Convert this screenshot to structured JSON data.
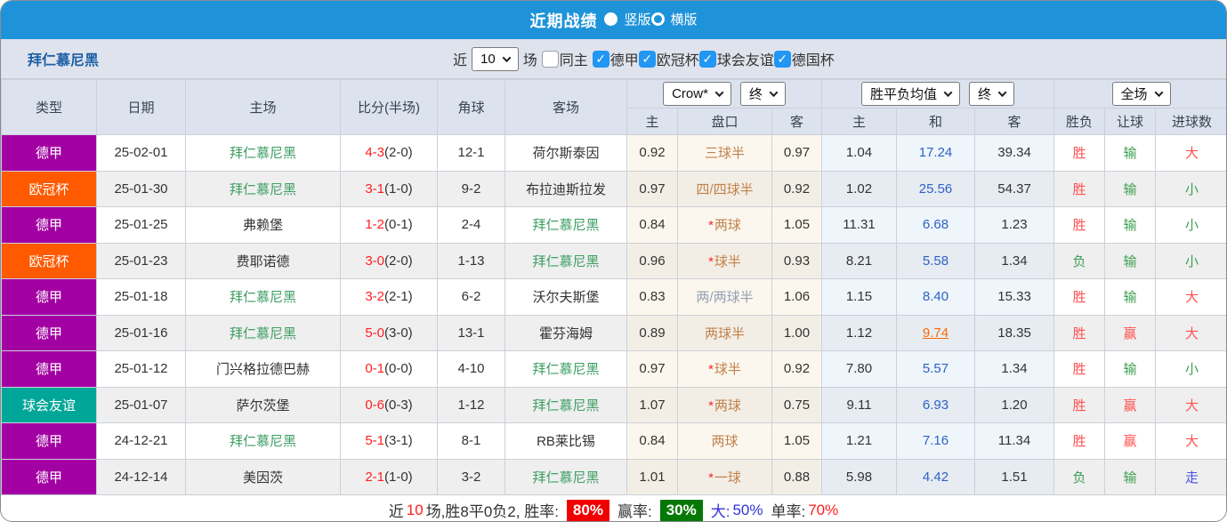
{
  "titlebar": {
    "title": "近期战绩",
    "radios": [
      {
        "label": "竖版",
        "selected": true
      },
      {
        "label": "横版",
        "selected": false
      }
    ]
  },
  "filterbar": {
    "team": "拜仁慕尼黑",
    "near_label": "近",
    "count_value": "10",
    "games_label": "场",
    "same_home": {
      "label": "同主",
      "checked": false
    },
    "leagues": [
      {
        "label": "德甲",
        "checked": true
      },
      {
        "label": "欧冠杯",
        "checked": true
      },
      {
        "label": "球会友谊",
        "checked": true
      },
      {
        "label": "德国杯",
        "checked": true
      }
    ]
  },
  "table": {
    "main_headers": [
      "类型",
      "日期",
      "主场",
      "比分(半场)",
      "角球",
      "客场"
    ],
    "sub_headers": [
      "主",
      "盘口",
      "客",
      "主",
      "和",
      "客",
      "胜负",
      "让球",
      "进球数"
    ],
    "selects": {
      "odds_company": "Crow*",
      "odds_time": "终",
      "wdl_source": "胜平负均值",
      "wdl_time": "终",
      "scope": "全场"
    },
    "rows": [
      {
        "league": "德甲",
        "date": "25-02-01",
        "home": {
          "name": "拜仁慕尼黑",
          "hl": true
        },
        "score": "4-3",
        "half": "(2-0)",
        "corners": "12-1",
        "away": {
          "name": "荷尔斯泰因",
          "hl": false
        },
        "ah": {
          "home": "0.92",
          "star": false,
          "line": "三球半",
          "muted": false,
          "away": "0.97"
        },
        "eu": {
          "win": "1.04",
          "draw": "17.24",
          "draw_hl": false,
          "lose": "39.34"
        },
        "res": {
          "wl": "胜",
          "wl_c": "r",
          "ah": "输",
          "ah_c": "g",
          "ou": "大",
          "ou_c": "r"
        }
      },
      {
        "league": "欧冠杯",
        "date": "25-01-30",
        "home": {
          "name": "拜仁慕尼黑",
          "hl": true
        },
        "score": "3-1",
        "half": "(1-0)",
        "corners": "9-2",
        "away": {
          "name": "布拉迪斯拉发",
          "hl": false
        },
        "ah": {
          "home": "0.97",
          "star": false,
          "line": "四/四球半",
          "muted": false,
          "away": "0.92"
        },
        "eu": {
          "win": "1.02",
          "draw": "25.56",
          "draw_hl": false,
          "lose": "54.37"
        },
        "res": {
          "wl": "胜",
          "wl_c": "r",
          "ah": "输",
          "ah_c": "g",
          "ou": "小",
          "ou_c": "g"
        }
      },
      {
        "league": "德甲",
        "date": "25-01-25",
        "home": {
          "name": "弗赖堡",
          "hl": false
        },
        "score": "1-2",
        "half": "(0-1)",
        "corners": "2-4",
        "away": {
          "name": "拜仁慕尼黑",
          "hl": true
        },
        "ah": {
          "home": "0.84",
          "star": true,
          "line": "两球",
          "muted": false,
          "away": "1.05"
        },
        "eu": {
          "win": "11.31",
          "draw": "6.68",
          "draw_hl": false,
          "lose": "1.23"
        },
        "res": {
          "wl": "胜",
          "wl_c": "r",
          "ah": "输",
          "ah_c": "g",
          "ou": "小",
          "ou_c": "g"
        }
      },
      {
        "league": "欧冠杯",
        "date": "25-01-23",
        "home": {
          "name": "费耶诺德",
          "hl": false
        },
        "score": "3-0",
        "half": "(2-0)",
        "corners": "1-13",
        "away": {
          "name": "拜仁慕尼黑",
          "hl": true
        },
        "ah": {
          "home": "0.96",
          "star": true,
          "line": "球半",
          "muted": false,
          "away": "0.93"
        },
        "eu": {
          "win": "8.21",
          "draw": "5.58",
          "draw_hl": false,
          "lose": "1.34"
        },
        "res": {
          "wl": "负",
          "wl_c": "g",
          "ah": "输",
          "ah_c": "g",
          "ou": "小",
          "ou_c": "g"
        }
      },
      {
        "league": "德甲",
        "date": "25-01-18",
        "home": {
          "name": "拜仁慕尼黑",
          "hl": true
        },
        "score": "3-2",
        "half": "(2-1)",
        "corners": "6-2",
        "away": {
          "name": "沃尔夫斯堡",
          "hl": false
        },
        "ah": {
          "home": "0.83",
          "star": false,
          "line": "两/两球半",
          "muted": true,
          "away": "1.06"
        },
        "eu": {
          "win": "1.15",
          "draw": "8.40",
          "draw_hl": false,
          "lose": "15.33"
        },
        "res": {
          "wl": "胜",
          "wl_c": "r",
          "ah": "输",
          "ah_c": "g",
          "ou": "大",
          "ou_c": "r"
        }
      },
      {
        "league": "德甲",
        "date": "25-01-16",
        "home": {
          "name": "拜仁慕尼黑",
          "hl": true
        },
        "score": "5-0",
        "half": "(3-0)",
        "corners": "13-1",
        "away": {
          "name": "霍芬海姆",
          "hl": false
        },
        "ah": {
          "home": "0.89",
          "star": false,
          "line": "两球半",
          "muted": false,
          "away": "1.00"
        },
        "eu": {
          "win": "1.12",
          "draw": "9.74",
          "draw_hl": true,
          "lose": "18.35"
        },
        "res": {
          "wl": "胜",
          "wl_c": "r",
          "ah": "赢",
          "ah_c": "r",
          "ou": "大",
          "ou_c": "r"
        }
      },
      {
        "league": "德甲",
        "date": "25-01-12",
        "home": {
          "name": "门兴格拉德巴赫",
          "hl": false
        },
        "score": "0-1",
        "half": "(0-0)",
        "corners": "4-10",
        "away": {
          "name": "拜仁慕尼黑",
          "hl": true
        },
        "ah": {
          "home": "0.97",
          "star": true,
          "line": "球半",
          "muted": false,
          "away": "0.92"
        },
        "eu": {
          "win": "7.80",
          "draw": "5.57",
          "draw_hl": false,
          "lose": "1.34"
        },
        "res": {
          "wl": "胜",
          "wl_c": "r",
          "ah": "输",
          "ah_c": "g",
          "ou": "小",
          "ou_c": "g"
        }
      },
      {
        "league": "球会友谊",
        "date": "25-01-07",
        "home": {
          "name": "萨尔茨堡",
          "hl": false
        },
        "score": "0-6",
        "half": "(0-3)",
        "corners": "1-12",
        "away": {
          "name": "拜仁慕尼黑",
          "hl": true
        },
        "ah": {
          "home": "1.07",
          "star": true,
          "line": "两球",
          "muted": false,
          "away": "0.75"
        },
        "eu": {
          "win": "9.11",
          "draw": "6.93",
          "draw_hl": false,
          "lose": "1.20"
        },
        "res": {
          "wl": "胜",
          "wl_c": "r",
          "ah": "赢",
          "ah_c": "r",
          "ou": "大",
          "ou_c": "r"
        }
      },
      {
        "league": "德甲",
        "date": "24-12-21",
        "home": {
          "name": "拜仁慕尼黑",
          "hl": true
        },
        "score": "5-1",
        "half": "(3-1)",
        "corners": "8-1",
        "away": {
          "name": "RB莱比锡",
          "hl": false
        },
        "ah": {
          "home": "0.84",
          "star": false,
          "line": "两球",
          "muted": false,
          "away": "1.05"
        },
        "eu": {
          "win": "1.21",
          "draw": "7.16",
          "draw_hl": false,
          "lose": "11.34"
        },
        "res": {
          "wl": "胜",
          "wl_c": "r",
          "ah": "赢",
          "ah_c": "r",
          "ou": "大",
          "ou_c": "r"
        }
      },
      {
        "league": "德甲",
        "date": "24-12-14",
        "home": {
          "name": "美因茨",
          "hl": false
        },
        "score": "2-1",
        "half": "(1-0)",
        "corners": "3-2",
        "away": {
          "name": "拜仁慕尼黑",
          "hl": true
        },
        "ah": {
          "home": "1.01",
          "star": true,
          "line": "一球",
          "muted": false,
          "away": "0.88"
        },
        "eu": {
          "win": "5.98",
          "draw": "4.42",
          "draw_hl": false,
          "lose": "1.51"
        },
        "res": {
          "wl": "负",
          "wl_c": "g",
          "ah": "输",
          "ah_c": "g",
          "ou": "走",
          "ou_c": "b"
        }
      }
    ]
  },
  "summary": {
    "prefix": "近",
    "count": "10",
    "text1": "场,胜8平0负2, 胜率:",
    "win_rate": "80%",
    "label2": "赢率:",
    "win_odds_rate": "30%",
    "label3": "大:",
    "big_rate": "50%",
    "label4": "单率:",
    "single_rate": "70%"
  },
  "colors": {
    "accent_blue": "#1e93d9",
    "league": {
      "德甲": "#a300a3",
      "欧冠杯": "#ff5a00",
      "球会友谊": "#00a798",
      "德国杯": "#a300a3"
    },
    "team_green": "#3e9e63",
    "score_red": "#ff1e1e",
    "draw_blue": "#2e62c4",
    "highlight_orange": "#ff6a00",
    "badge_red": "#f00000",
    "badge_green": "#067806",
    "checkbox_blue": "#2196f3"
  }
}
